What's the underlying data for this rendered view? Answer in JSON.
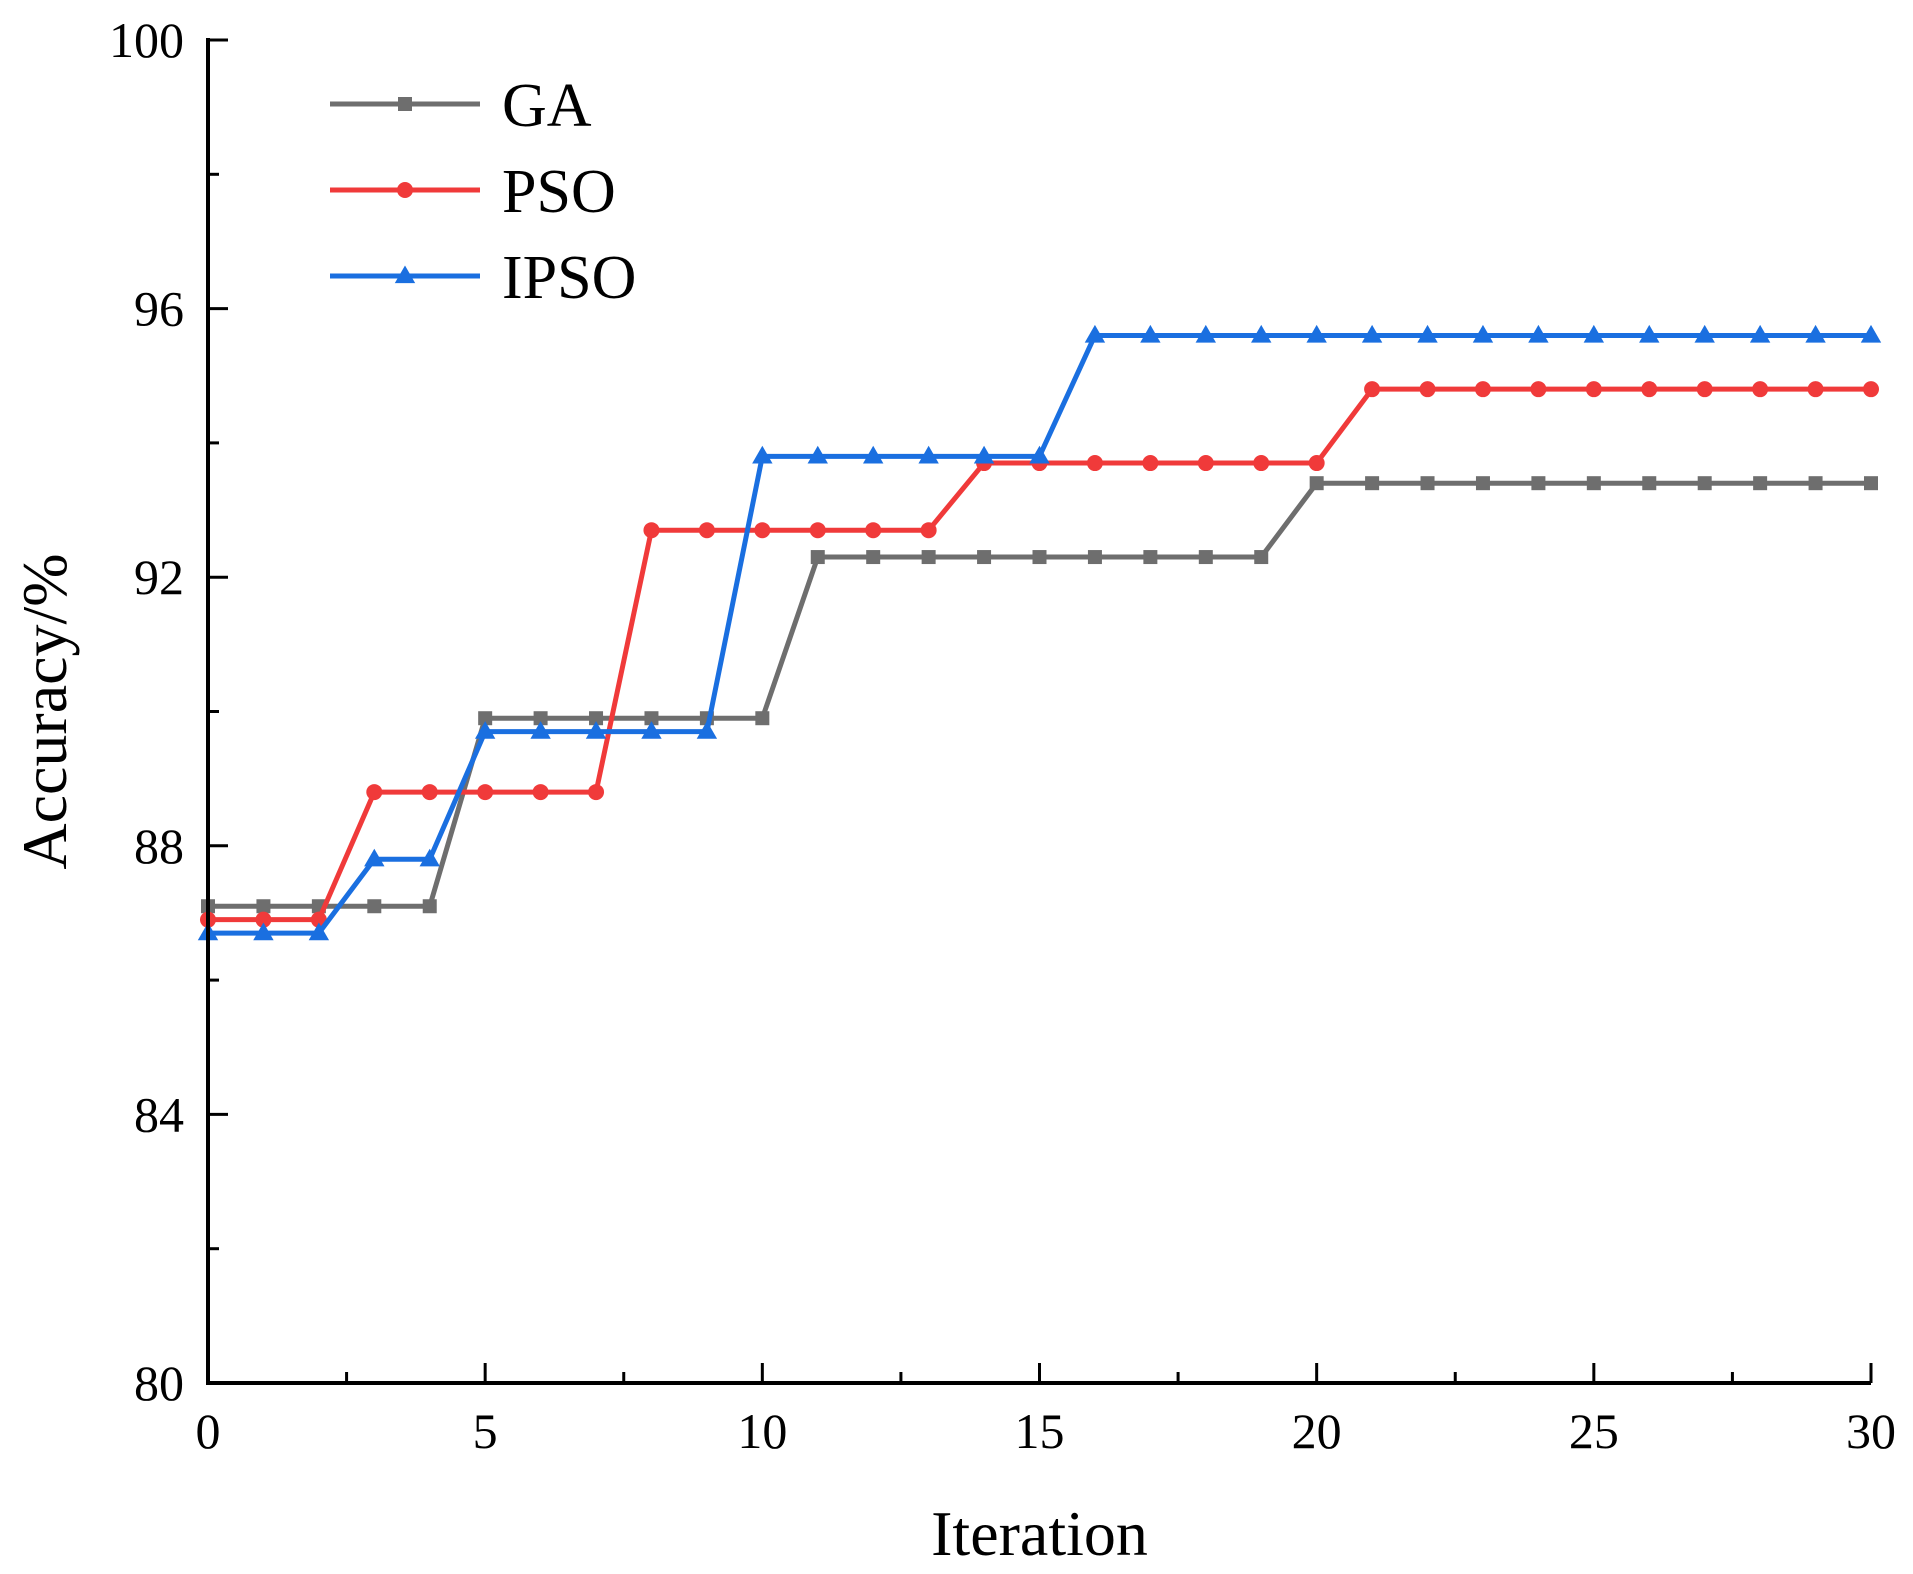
{
  "chart_data": {
    "type": "line",
    "title": "",
    "xlabel": "Iteration",
    "ylabel": "Accuracy/%",
    "xlim": [
      0,
      30
    ],
    "ylim": [
      80,
      100
    ],
    "x_ticks": [
      0,
      5,
      10,
      15,
      20,
      25,
      30
    ],
    "x_tick_labels": [
      "0",
      "5",
      "10",
      "15",
      "20",
      "25",
      "30"
    ],
    "y_ticks": [
      80,
      84,
      88,
      92,
      96,
      100
    ],
    "y_tick_labels": [
      "80",
      "84",
      "88",
      "92",
      "96",
      "100"
    ],
    "grid": false,
    "legend_position": "top-left",
    "x": [
      0,
      1,
      2,
      3,
      4,
      5,
      6,
      7,
      8,
      9,
      10,
      11,
      12,
      13,
      14,
      15,
      16,
      17,
      18,
      19,
      20,
      21,
      22,
      23,
      24,
      25,
      26,
      27,
      28,
      29,
      30
    ],
    "series": [
      {
        "name": "GA",
        "color": "#6e6e6e",
        "marker": "square",
        "values": [
          87.1,
          87.1,
          87.1,
          87.1,
          87.1,
          89.9,
          89.9,
          89.9,
          89.9,
          89.9,
          89.9,
          92.3,
          92.3,
          92.3,
          92.3,
          92.3,
          92.3,
          92.3,
          92.3,
          92.3,
          93.4,
          93.4,
          93.4,
          93.4,
          93.4,
          93.4,
          93.4,
          93.4,
          93.4,
          93.4,
          93.4
        ]
      },
      {
        "name": "PSO",
        "color": "#f03a3a",
        "marker": "circle",
        "values": [
          86.9,
          86.9,
          86.9,
          88.8,
          88.8,
          88.8,
          88.8,
          88.8,
          92.7,
          92.7,
          92.7,
          92.7,
          92.7,
          92.7,
          93.7,
          93.7,
          93.7,
          93.7,
          93.7,
          93.7,
          93.7,
          94.8,
          94.8,
          94.8,
          94.8,
          94.8,
          94.8,
          94.8,
          94.8,
          94.8,
          94.8
        ]
      },
      {
        "name": "IPSO",
        "color": "#1a6fe0",
        "marker": "triangle",
        "values": [
          86.7,
          86.7,
          86.7,
          87.8,
          87.8,
          89.7,
          89.7,
          89.7,
          89.7,
          89.7,
          93.8,
          93.8,
          93.8,
          93.8,
          93.8,
          93.8,
          95.6,
          95.6,
          95.6,
          95.6,
          95.6,
          95.6,
          95.6,
          95.6,
          95.6,
          95.6,
          95.6,
          95.6,
          95.6,
          95.6,
          95.6
        ]
      }
    ]
  }
}
